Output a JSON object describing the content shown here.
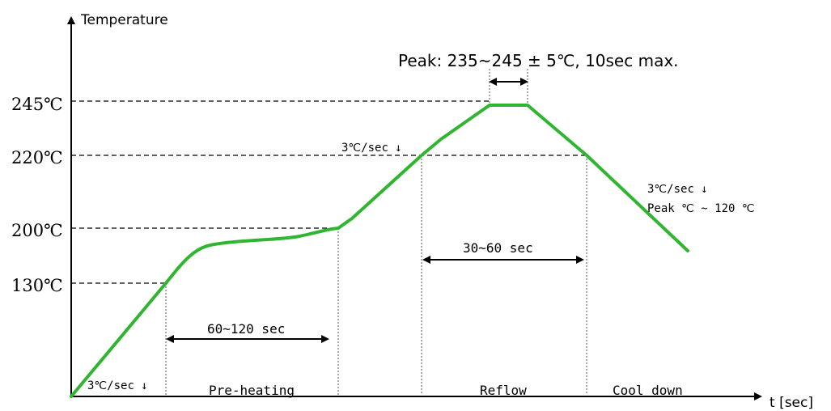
{
  "chart_data": {
    "type": "line",
    "ylabel": "Temperature",
    "xlabel": "t [sec]",
    "y_ticks": [
      "245℃",
      "220℃",
      "200℃",
      "130℃"
    ],
    "y_tick_values": [
      245,
      220,
      200,
      130
    ],
    "peak_label": "Peak: 235~245 ± 5℃, 10sec max.",
    "phases": [
      "Pre-heating",
      "Reflow",
      "Cool down"
    ],
    "intervals": {
      "preheat": "60~120 sec",
      "reflow": "30~60 sec"
    },
    "annotations": {
      "ramp_start": "3℃/sec ↓",
      "ramp_reflow": "3℃/sec ↓",
      "cool_rate": "3℃/sec ↓",
      "cool_range": "Peak  ℃ ~ 120  ℃"
    },
    "series": [
      {
        "color": "#2fb52f",
        "values": [
          25,
          130,
          178,
          185,
          200,
          210,
          220,
          245,
          245,
          220,
          150
        ]
      }
    ]
  }
}
